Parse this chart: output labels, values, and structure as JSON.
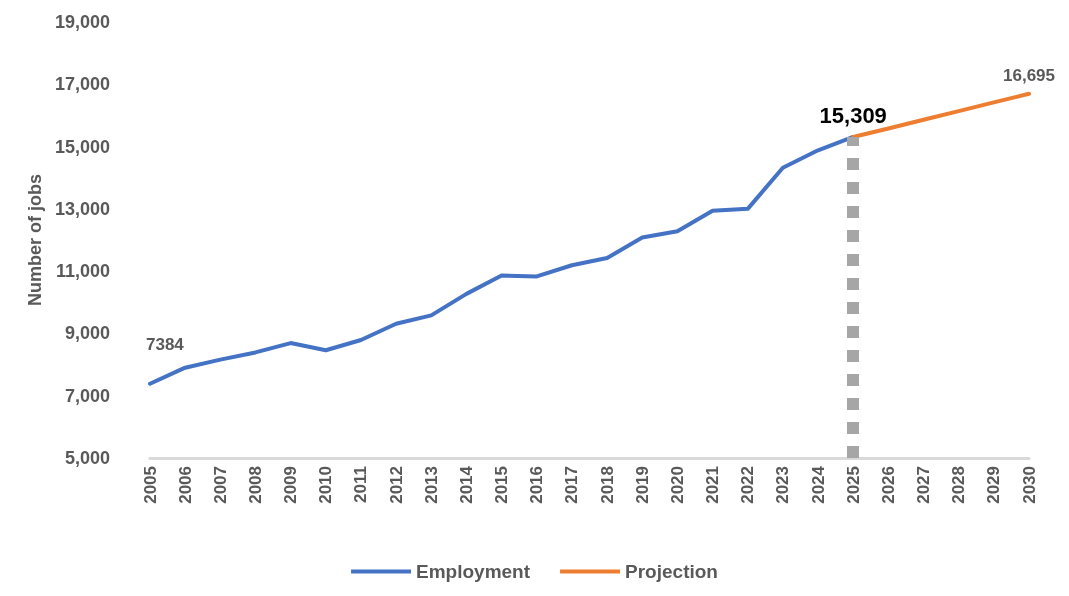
{
  "chart_data": {
    "type": "line",
    "ylabel": "Number of jobs",
    "categories": [
      "2005",
      "2006",
      "2007",
      "2008",
      "2009",
      "2010",
      "2011",
      "2012",
      "2013",
      "2014",
      "2015",
      "2016",
      "2017",
      "2018",
      "2019",
      "2020",
      "2021",
      "2022",
      "2023",
      "2024",
      "2025",
      "2026",
      "2027",
      "2028",
      "2029",
      "2030"
    ],
    "series": [
      {
        "name": "Employment",
        "color": "#4472c4",
        "values": [
          7384,
          7900,
          8160,
          8390,
          8690,
          8460,
          8790,
          9310,
          9580,
          10270,
          10860,
          10830,
          11190,
          11420,
          12080,
          12280,
          12940,
          13000,
          14320,
          14880,
          15309,
          null,
          null,
          null,
          null,
          null
        ],
        "value_labels": [
          "7384",
          null,
          null,
          null,
          null,
          null,
          null,
          null,
          null,
          null,
          null,
          null,
          null,
          null,
          null,
          null,
          null,
          null,
          null,
          null,
          "15,309",
          null,
          null,
          null,
          null,
          null
        ]
      },
      {
        "name": "Projection",
        "color": "#ed7d31",
        "values": [
          null,
          null,
          null,
          null,
          null,
          null,
          null,
          null,
          null,
          null,
          null,
          null,
          null,
          null,
          null,
          null,
          null,
          null,
          null,
          null,
          15309,
          15580,
          15860,
          16140,
          16420,
          16695
        ],
        "value_labels": [
          null,
          null,
          null,
          null,
          null,
          null,
          null,
          null,
          null,
          null,
          null,
          null,
          null,
          null,
          null,
          null,
          null,
          null,
          null,
          null,
          null,
          null,
          null,
          null,
          null,
          "16,695"
        ]
      }
    ],
    "ylim": [
      5000,
      19000
    ],
    "yticks": [
      {
        "value": 5000,
        "label": "5,000"
      },
      {
        "value": 7000,
        "label": "7,000"
      },
      {
        "value": 9000,
        "label": "9,000"
      },
      {
        "value": 11000,
        "label": "11,000"
      },
      {
        "value": 13000,
        "label": "13,000"
      },
      {
        "value": 15000,
        "label": "15,000"
      },
      {
        "value": 17000,
        "label": "17,000"
      },
      {
        "value": 19000,
        "label": "19,000"
      }
    ],
    "ref_lines": [
      {
        "axis": "x",
        "value": "2025",
        "color": "#a6a6a6",
        "line_style": "dotted"
      }
    ],
    "grid": false,
    "legend": "bottom",
    "marker": "none",
    "line_style": "solid"
  }
}
